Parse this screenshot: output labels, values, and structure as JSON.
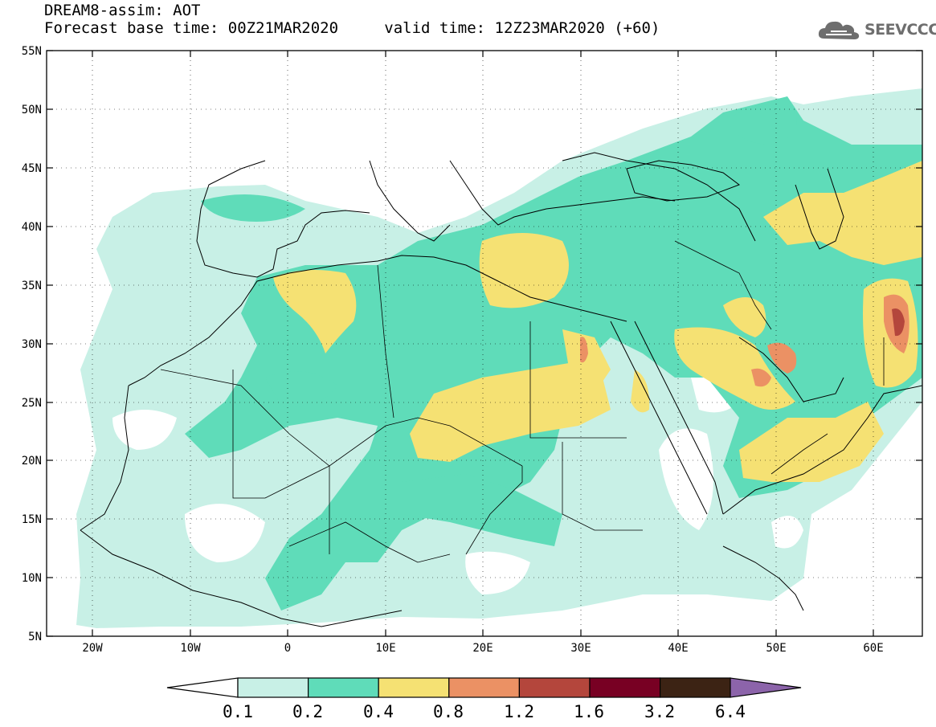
{
  "header": {
    "title_line": "DREAM8-assim: AOT",
    "base_time": "Forecast base time: 00Z21MAR2020",
    "valid_time": "valid time: 12Z23MAR2020 (+60)"
  },
  "logo": {
    "text": "SEEVCCC",
    "icon": "cloud-icon"
  },
  "map": {
    "lat_labels": [
      "55N",
      "50N",
      "45N",
      "40N",
      "35N",
      "30N",
      "25N",
      "20N",
      "15N",
      "10N",
      "5N"
    ],
    "lon_labels": [
      "20W",
      "10W",
      "0",
      "10E",
      "20E",
      "30E",
      "40E",
      "50E",
      "60E"
    ],
    "extent": {
      "lon_min": -25,
      "lon_max": 65,
      "lat_min": 5,
      "lat_max": 55
    }
  },
  "colorbar": {
    "labels": [
      "0.1",
      "0.2",
      "0.4",
      "0.8",
      "1.2",
      "1.6",
      "3.2",
      "6.4"
    ],
    "colors": [
      "#c8f0e6",
      "#5fdcb9",
      "#f5e173",
      "#eb9164",
      "#b4463c",
      "#780023",
      "#3c2314",
      "#8c64aa"
    ]
  }
}
